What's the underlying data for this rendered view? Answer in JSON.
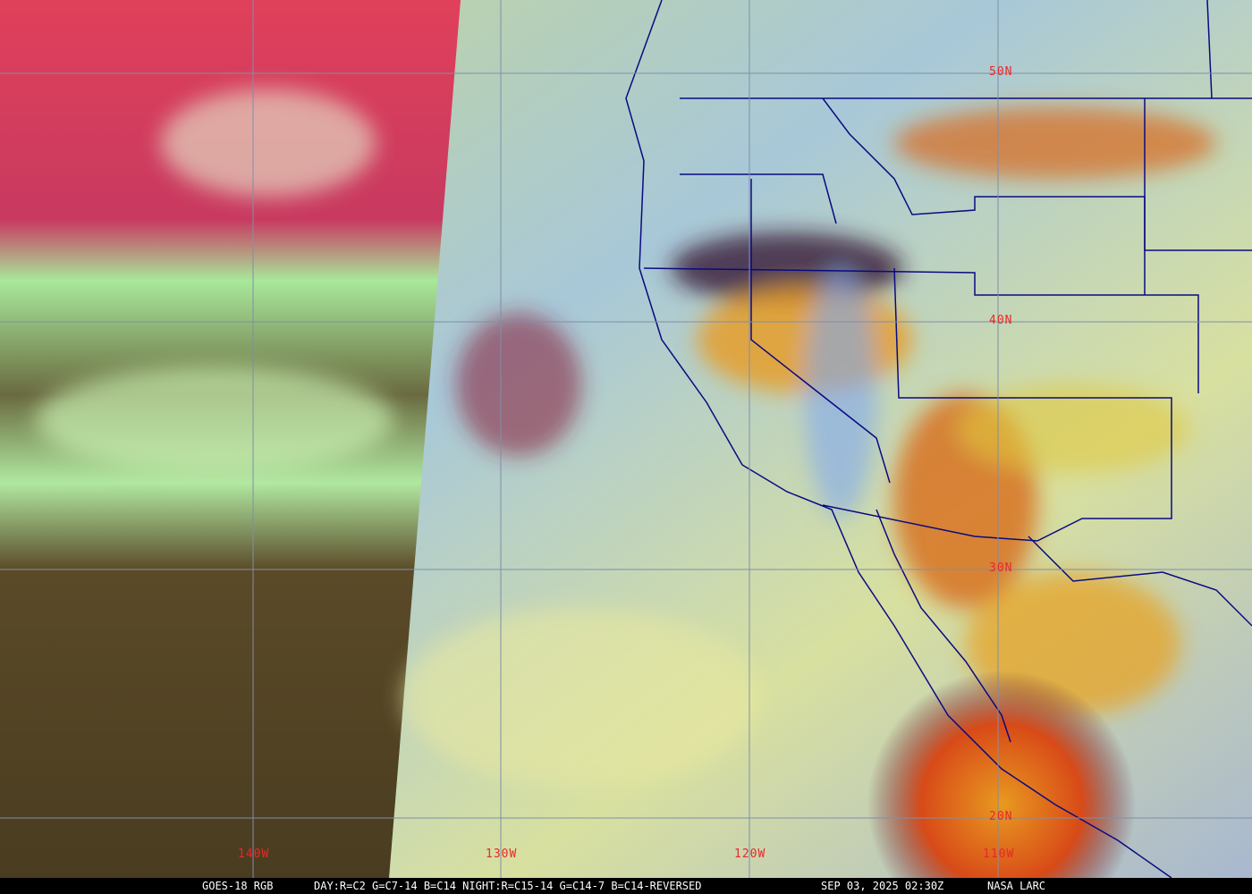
{
  "caption": {
    "satellite": "GOES-18 RGB",
    "recipe": "DAY:R=C2 G=C7-14 B=C14 NIGHT:R=C15-14 G=C14-7 B=C14-REVERSED",
    "timestamp": "SEP 03, 2025 02:30Z",
    "credit": "NASA LARC"
  },
  "grid_labels": {
    "lat": [
      "50N",
      "40N",
      "30N",
      "20N"
    ],
    "lon": [
      "140W",
      "130W",
      "120W",
      "110W"
    ]
  },
  "colors": {
    "grid": "#7f8fa8",
    "labels": "#e8282a",
    "boundaries": "#0a0a80"
  }
}
